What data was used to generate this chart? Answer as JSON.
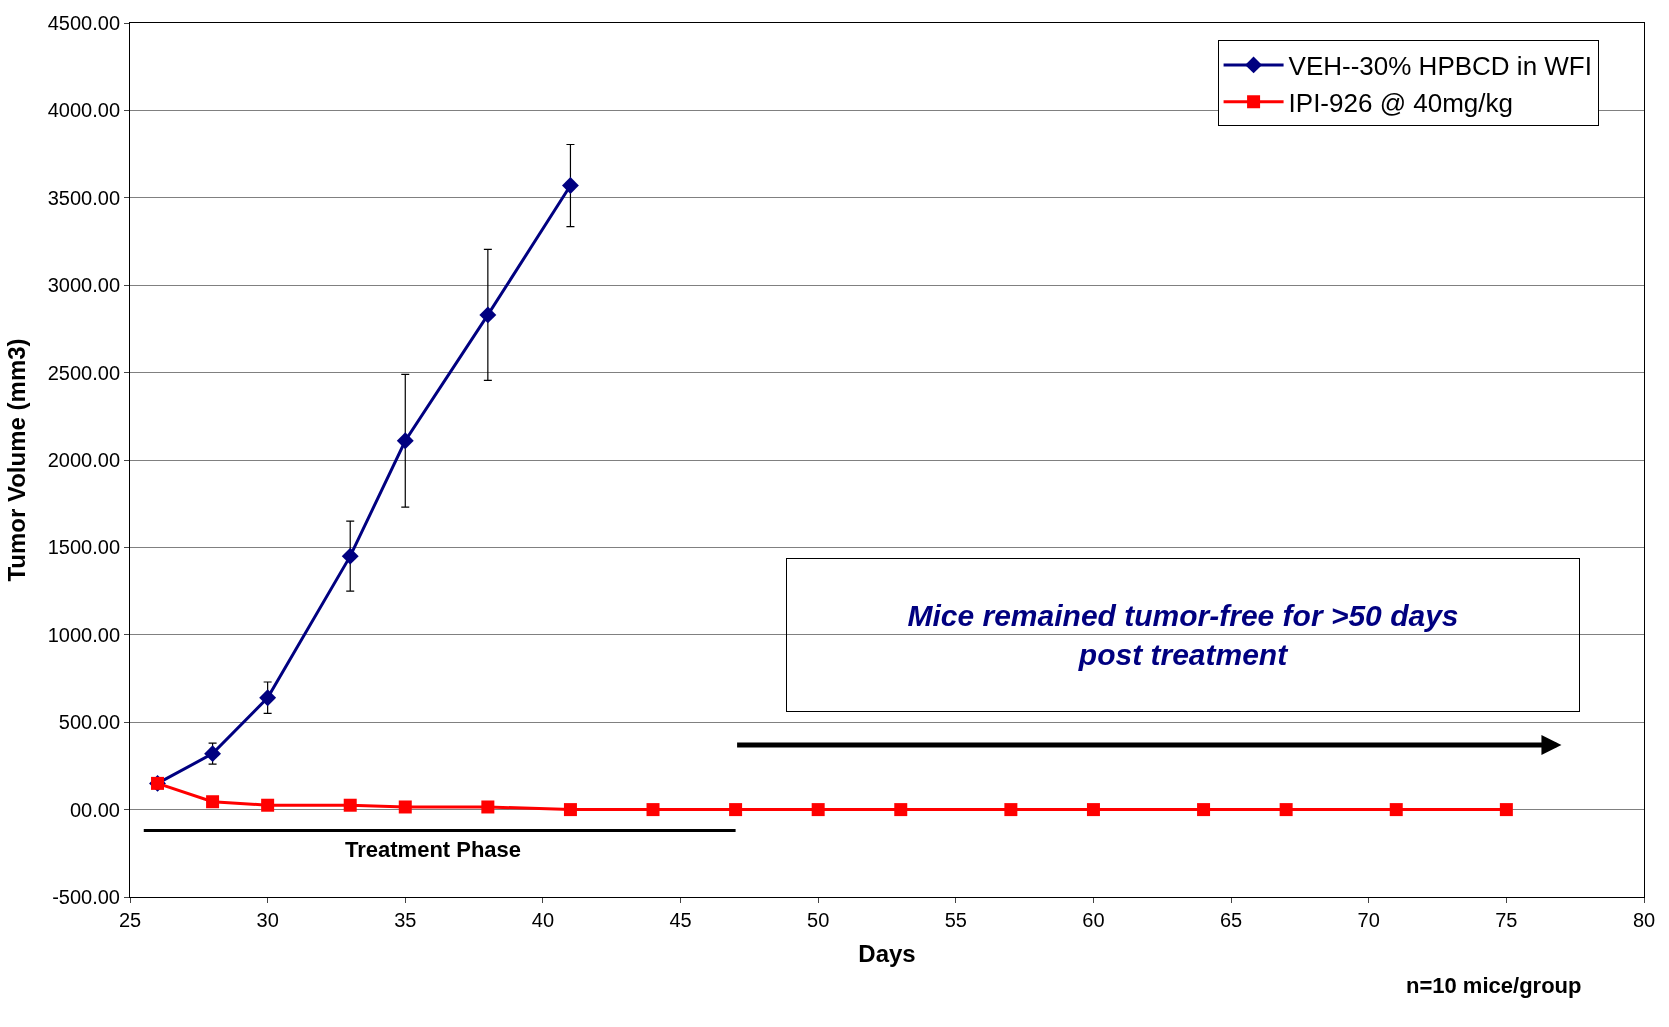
{
  "chart_data": {
    "type": "line",
    "xlabel": "Days",
    "ylabel": "Tumor Volume (mm3)",
    "series": [
      {
        "name": "VEH--30% HPBCD in WFI",
        "color": "#000080",
        "marker": "diamond",
        "x": [
          26,
          28,
          30,
          33,
          35,
          38,
          41
        ],
        "values": [
          150,
          320,
          640,
          1450,
          2110,
          2830,
          3570
        ],
        "errors": [
          null,
          60,
          90,
          200,
          380,
          375,
          235
        ]
      },
      {
        "name": "IPI-926 @ 40mg/kg",
        "color": "#ff0000",
        "marker": "square",
        "x": [
          26,
          28,
          30,
          33,
          35,
          38,
          41,
          44,
          47,
          50,
          53,
          57,
          60,
          64,
          67,
          71,
          75
        ],
        "values": [
          150,
          45,
          25,
          25,
          15,
          15,
          0,
          0,
          0,
          0,
          0,
          0,
          0,
          0,
          0,
          0,
          0
        ]
      },
      {
        "color": "#000000",
        "marker": "none",
        "x": [
          25.5,
          47
        ],
        "values": [
          -120,
          -120
        ]
      }
    ],
    "xlim": [
      25,
      80
    ],
    "xticks": [
      25,
      30,
      35,
      40,
      45,
      50,
      55,
      60,
      65,
      70,
      75,
      80
    ],
    "ylim": [
      -500,
      4500
    ],
    "yticks": [
      {
        "value": -500,
        "label": "-500.00"
      },
      {
        "value": 0,
        "label": "00.00"
      },
      {
        "value": 500,
        "label": "500.00"
      },
      {
        "value": 1000,
        "label": "1000.00"
      },
      {
        "value": 1500,
        "label": "1500.00"
      },
      {
        "value": 2000,
        "label": "2000.00"
      },
      {
        "value": 2500,
        "label": "2500.00"
      },
      {
        "value": 3000,
        "label": "3000.00"
      },
      {
        "value": 3500,
        "label": "3500.00"
      },
      {
        "value": 4000,
        "label": "4000.00"
      },
      {
        "value": 4500,
        "label": "4500.00"
      }
    ],
    "grid": "y",
    "legend": "top right",
    "line_style": "solid",
    "annotations": [
      "Mice remained tumor-free for >50 days post treatment",
      {
        "text": "Treatment Phase",
        "x": 36,
        "y": -120
      },
      "n=10 mice/group"
    ]
  }
}
